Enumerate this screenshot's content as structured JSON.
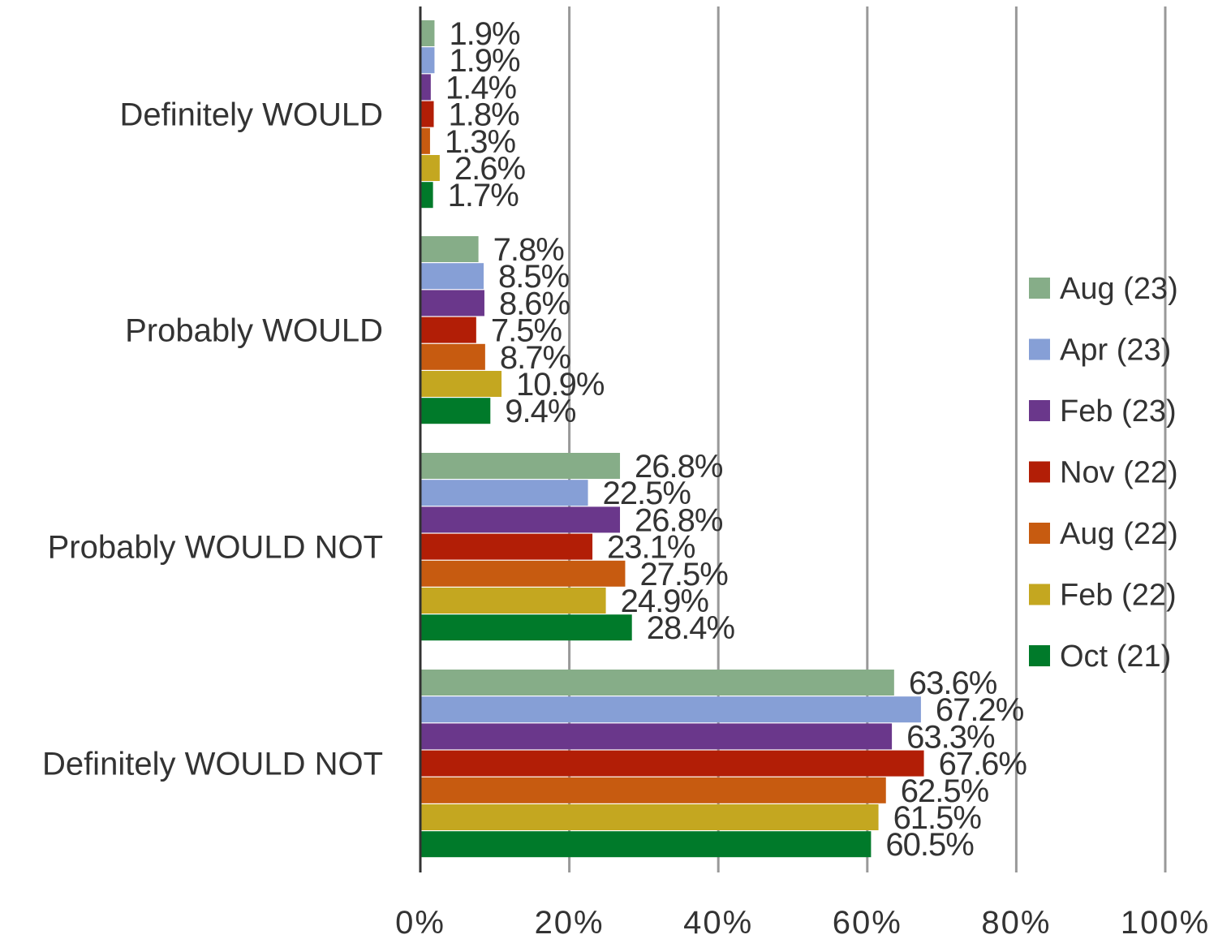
{
  "chart_data": {
    "type": "bar",
    "orientation": "horizontal",
    "title": "",
    "xlabel": "",
    "ylabel": "",
    "xlim": [
      0,
      100
    ],
    "x_ticks": [
      "0%",
      "20%",
      "40%",
      "60%",
      "80%",
      "100%"
    ],
    "grid": true,
    "legend_position": "right",
    "categories": [
      "Definitely WOULD",
      "Probably WOULD",
      "Probably WOULD NOT",
      "Definitely WOULD NOT"
    ],
    "series": [
      {
        "name": "Aug (23)",
        "color": "#86ad88",
        "values": [
          1.9,
          7.8,
          26.8,
          63.6
        ],
        "labels": [
          "1.9%",
          "7.8%",
          "26.8%",
          "63.6%"
        ]
      },
      {
        "name": "Apr (23)",
        "color": "#869fd6",
        "values": [
          1.9,
          8.5,
          22.5,
          67.2
        ],
        "labels": [
          "1.9%",
          "8.5%",
          "22.5%",
          "67.2%"
        ]
      },
      {
        "name": "Feb (23)",
        "color": "#6a378b",
        "values": [
          1.4,
          8.6,
          26.8,
          63.3
        ],
        "labels": [
          "1.4%",
          "8.6%",
          "26.8%",
          "63.3%"
        ]
      },
      {
        "name": "Nov (22)",
        "color": "#b21e06",
        "values": [
          1.8,
          7.5,
          23.1,
          67.6
        ],
        "labels": [
          "1.8%",
          "7.5%",
          "23.1%",
          "67.6%"
        ]
      },
      {
        "name": "Aug (22)",
        "color": "#c75b10",
        "values": [
          1.3,
          8.7,
          27.5,
          62.5
        ],
        "labels": [
          "1.3%",
          "8.7%",
          "27.5%",
          "62.5%"
        ]
      },
      {
        "name": "Feb (22)",
        "color": "#c4a720",
        "values": [
          2.6,
          10.9,
          24.9,
          61.5
        ],
        "labels": [
          "2.6%",
          "10.9%",
          "24.9%",
          "61.5%"
        ]
      },
      {
        "name": "Oct (21)",
        "color": "#007a2a",
        "values": [
          1.7,
          9.4,
          28.4,
          60.5
        ],
        "labels": [
          "1.7%",
          "9.4%",
          "28.4%",
          "60.5%"
        ]
      }
    ]
  },
  "colors": {
    "gridline": "#999999",
    "axis": "#333333",
    "text": "#333333"
  }
}
